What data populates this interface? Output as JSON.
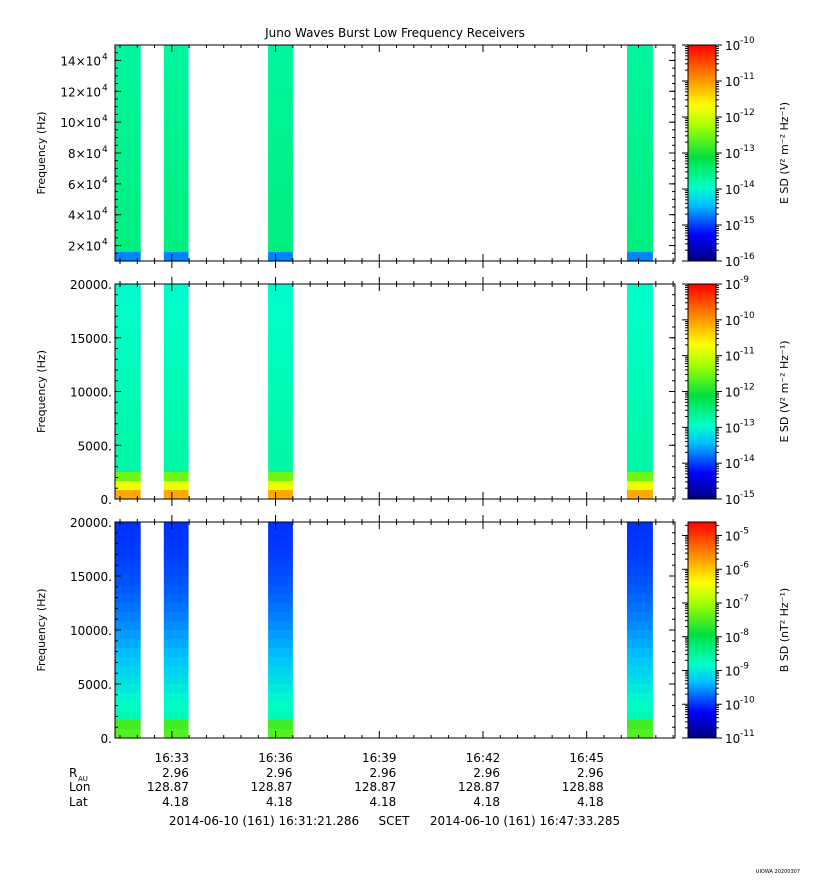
{
  "chart_data": {
    "type": "heatmap",
    "title": "Juno Waves Burst Low Frequency Receivers",
    "x_ticks": [
      "16:33",
      "16:36",
      "16:39",
      "16:42",
      "16:45"
    ],
    "time_range": [
      "2014-06-10 (161) 16:31:21.286",
      "2014-06-10 (161) 16:47:33.285"
    ],
    "time_system": "SCET",
    "burst_intervals": [
      [
        "16:31:21",
        "16:32:06"
      ],
      [
        "16:32:46",
        "16:33:29"
      ],
      [
        "16:35:47",
        "16:36:30"
      ],
      [
        "16:46:10",
        "16:46:55"
      ]
    ],
    "panels": [
      {
        "ylabel": "Frequency (Hz)",
        "yrange": [
          10000,
          150000
        ],
        "y_ticks": [
          {
            "value": 20000,
            "label": "2×10",
            "exp": "4"
          },
          {
            "value": 40000,
            "label": "4×10",
            "exp": "4"
          },
          {
            "value": 60000,
            "label": "6×10",
            "exp": "4"
          },
          {
            "value": 80000,
            "label": "8×10",
            "exp": "4"
          },
          {
            "value": 100000,
            "label": "10×10",
            "exp": "4"
          },
          {
            "value": 120000,
            "label": "12×10",
            "exp": "4"
          },
          {
            "value": 140000,
            "label": "14×10",
            "exp": "4"
          }
        ],
        "colorbar_label": "E SD (V² m⁻² Hz⁻¹)",
        "colorbar_log_range": [
          -16,
          -10
        ],
        "colorbar_ticks": [
          "-16",
          "-15",
          "-14",
          "-13",
          "-12",
          "-11",
          "-10"
        ],
        "typical_log_level": -13.6
      },
      {
        "ylabel": "Frequency (Hz)",
        "yrange": [
          0,
          20000
        ],
        "y_ticks": [
          {
            "value": 0,
            "label": "0."
          },
          {
            "value": 5000,
            "label": "5000."
          },
          {
            "value": 10000,
            "label": "10000."
          },
          {
            "value": 15000,
            "label": "15000."
          },
          {
            "value": 20000,
            "label": "20000."
          }
        ],
        "colorbar_label": "E SD (V² m⁻² Hz⁻¹)",
        "colorbar_log_range": [
          -15,
          -9
        ],
        "colorbar_ticks": [
          "-15",
          "-14",
          "-13",
          "-12",
          "-11",
          "-10",
          "-9"
        ],
        "typical_log_level": -13.0
      },
      {
        "ylabel": "Frequency (Hz)",
        "yrange": [
          0,
          20000
        ],
        "y_ticks": [
          {
            "value": 0,
            "label": "0."
          },
          {
            "value": 5000,
            "label": "5000."
          },
          {
            "value": 10000,
            "label": "10000."
          },
          {
            "value": 15000,
            "label": "15000."
          },
          {
            "value": 20000,
            "label": "20000."
          }
        ],
        "colorbar_label": "B SD (nT² Hz⁻¹)",
        "colorbar_log_range": [
          -11,
          -4.6
        ],
        "colorbar_ticks": [
          "-11",
          "-10",
          "-9",
          "-8",
          "-7",
          "-6",
          "-5"
        ],
        "typical_log_level": -10.0
      }
    ],
    "ephemeris": {
      "labels": [
        "R",
        "Lon",
        "Lat"
      ],
      "r_subscript": "AU",
      "rows": [
        [
          "2.96",
          "2.96",
          "2.96",
          "2.96",
          "2.96"
        ],
        [
          "128.87",
          "128.87",
          "128.87",
          "128.87",
          "128.88"
        ],
        [
          "4.18",
          "4.18",
          "4.18",
          "4.18",
          "4.18"
        ]
      ]
    },
    "footer_stamp": "UIOWA 20200307"
  }
}
